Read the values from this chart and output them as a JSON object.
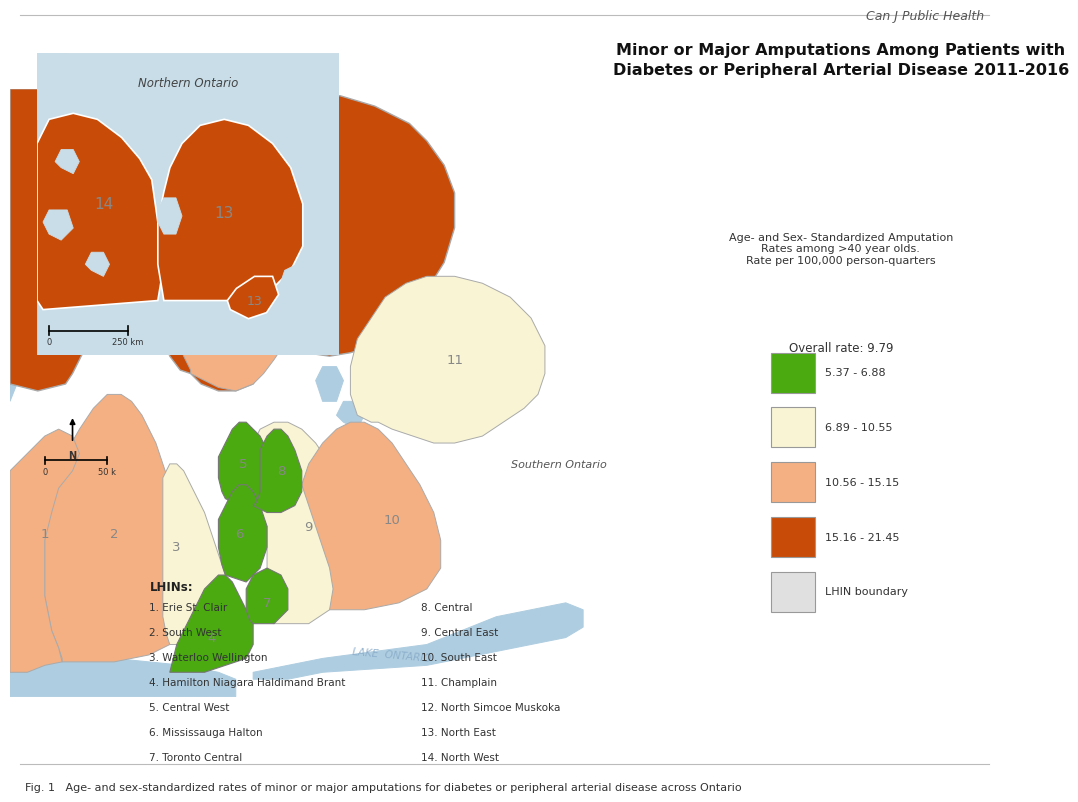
{
  "title": "Minor or Major Amputations Among Patients with\nDiabetes or Peripheral Arterial Disease 2011-2016",
  "fig_caption": "Fig. 1   Age- and sex-standardized rates of minor or major amputations for diabetes or peripheral arterial disease across Ontario",
  "journal_label": "Can J Public Health",
  "subtitle_annotation": "Age- and Sex- Standardized Amputation\nRates among >40 year olds.\nRate per 100,000 person-quarters",
  "overall_rate": "Overall rate: 9.79",
  "legend_entries": [
    {
      "label": "5.37 - 6.88",
      "color": "#4aaa10"
    },
    {
      "label": "6.89 - 10.55",
      "color": "#f8f4d4"
    },
    {
      "label": "10.56 - 15.15",
      "color": "#f4b082"
    },
    {
      "label": "15.16 - 21.45",
      "color": "#c84c08"
    },
    {
      "label": "LHIN boundary",
      "color": "#e0e0e0"
    }
  ],
  "lhin_list_col1": [
    "1. Erie St. Clair",
    "2. South West",
    "3. Waterloo Wellington",
    "4. Hamilton Niagara Haldimand Brant",
    "5. Central West",
    "6. Mississauga Halton",
    "7. Toronto Central"
  ],
  "lhin_list_col2": [
    "8. Central",
    "9. Central East",
    "10. South East",
    "11. Champlain",
    "12. North Simcoe Muskoka",
    "13. North East",
    "14. North West"
  ],
  "water_color": "#aecde0",
  "background_color": "#ffffff",
  "map_bg": "#aecde0",
  "inset_bg": "#c8dde8",
  "label_color": "#888888",
  "border_color": "#aaaaaa",
  "colors": {
    "green": "#4aaa10",
    "cream": "#f8f4d4",
    "light_orange": "#f4b082",
    "dark_orange": "#c84c08",
    "light_gray": "#e0e0e0",
    "white": "#ffffff"
  }
}
